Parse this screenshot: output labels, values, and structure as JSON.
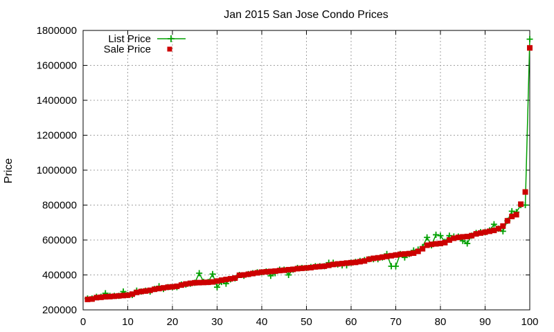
{
  "chart_data": {
    "type": "line",
    "title": "Jan 2015 San Jose Condo Prices",
    "xlabel": "",
    "ylabel": "Price",
    "xlim": [
      0,
      100
    ],
    "ylim": [
      200000,
      1800000
    ],
    "grid": true,
    "legend_position": "top-left",
    "x_ticks": [
      "0",
      "10",
      "20",
      "30",
      "40",
      "50",
      "60",
      "70",
      "80",
      "90",
      "100"
    ],
    "y_ticks": [
      "200000",
      "400000",
      "600000",
      "800000",
      "1000000",
      "1200000",
      "1400000",
      "1600000",
      "1800000"
    ],
    "x": [
      1,
      2,
      3,
      4,
      5,
      6,
      7,
      8,
      9,
      10,
      11,
      12,
      13,
      14,
      15,
      16,
      17,
      18,
      19,
      20,
      21,
      22,
      23,
      24,
      25,
      26,
      27,
      28,
      29,
      30,
      31,
      32,
      33,
      34,
      35,
      36,
      37,
      38,
      39,
      40,
      41,
      42,
      43,
      44,
      45,
      46,
      47,
      48,
      49,
      50,
      51,
      52,
      53,
      54,
      55,
      56,
      57,
      58,
      59,
      60,
      61,
      62,
      63,
      64,
      65,
      66,
      67,
      68,
      69,
      70,
      71,
      72,
      73,
      74,
      75,
      76,
      77,
      78,
      79,
      80,
      81,
      82,
      83,
      84,
      85,
      86,
      87,
      88,
      89,
      90,
      91,
      92,
      93,
      94,
      95,
      96,
      97,
      98,
      99,
      100
    ],
    "series": [
      {
        "name": "List Price",
        "color": "#00a000",
        "marker": "plus",
        "values": [
          265000,
          265000,
          275000,
          275000,
          295000,
          280000,
          280000,
          280000,
          305000,
          285000,
          285000,
          310000,
          305000,
          310000,
          305000,
          320000,
          335000,
          320000,
          330000,
          330000,
          330000,
          345000,
          345000,
          350000,
          355000,
          410000,
          360000,
          360000,
          405000,
          330000,
          360000,
          350000,
          375000,
          380000,
          400000,
          395000,
          405000,
          410000,
          415000,
          415000,
          420000,
          395000,
          410000,
          430000,
          430000,
          400000,
          430000,
          440000,
          440000,
          440000,
          445000,
          450000,
          450000,
          450000,
          470000,
          470000,
          460000,
          455000,
          455000,
          470000,
          475000,
          480000,
          485000,
          490000,
          490000,
          490000,
          500000,
          520000,
          450000,
          450000,
          520000,
          500000,
          520000,
          540000,
          545000,
          560000,
          615000,
          570000,
          630000,
          625000,
          590000,
          625000,
          620000,
          620000,
          595000,
          580000,
          625000,
          640000,
          645000,
          645000,
          655000,
          690000,
          665000,
          650000,
          710000,
          765000,
          760000,
          800000,
          800000,
          1750000
        ]
      },
      {
        "name": "Sale Price",
        "color": "#cc0000",
        "marker": "square",
        "values": [
          260000,
          262000,
          270000,
          272000,
          275000,
          276000,
          278000,
          280000,
          282000,
          284000,
          290000,
          300000,
          305000,
          308000,
          312000,
          318000,
          322000,
          326000,
          330000,
          332000,
          335000,
          342000,
          348000,
          352000,
          355000,
          356000,
          357000,
          358000,
          360000,
          365000,
          370000,
          374000,
          378000,
          382000,
          398000,
          400000,
          404000,
          408000,
          412000,
          416000,
          418000,
          420000,
          422000,
          425000,
          427000,
          430000,
          432000,
          436000,
          438000,
          440000,
          442000,
          446000,
          448000,
          450000,
          455000,
          460000,
          463000,
          465000,
          468000,
          470000,
          472000,
          476000,
          480000,
          490000,
          495000,
          498000,
          502000,
          506000,
          510000,
          514000,
          518000,
          520000,
          522000,
          525000,
          535000,
          550000,
          570000,
          575000,
          578000,
          580000,
          585000,
          600000,
          610000,
          615000,
          618000,
          620000,
          625000,
          635000,
          640000,
          645000,
          650000,
          655000,
          665000,
          680000,
          710000,
          735000,
          745000,
          805000,
          875000,
          1700000
        ]
      }
    ]
  }
}
